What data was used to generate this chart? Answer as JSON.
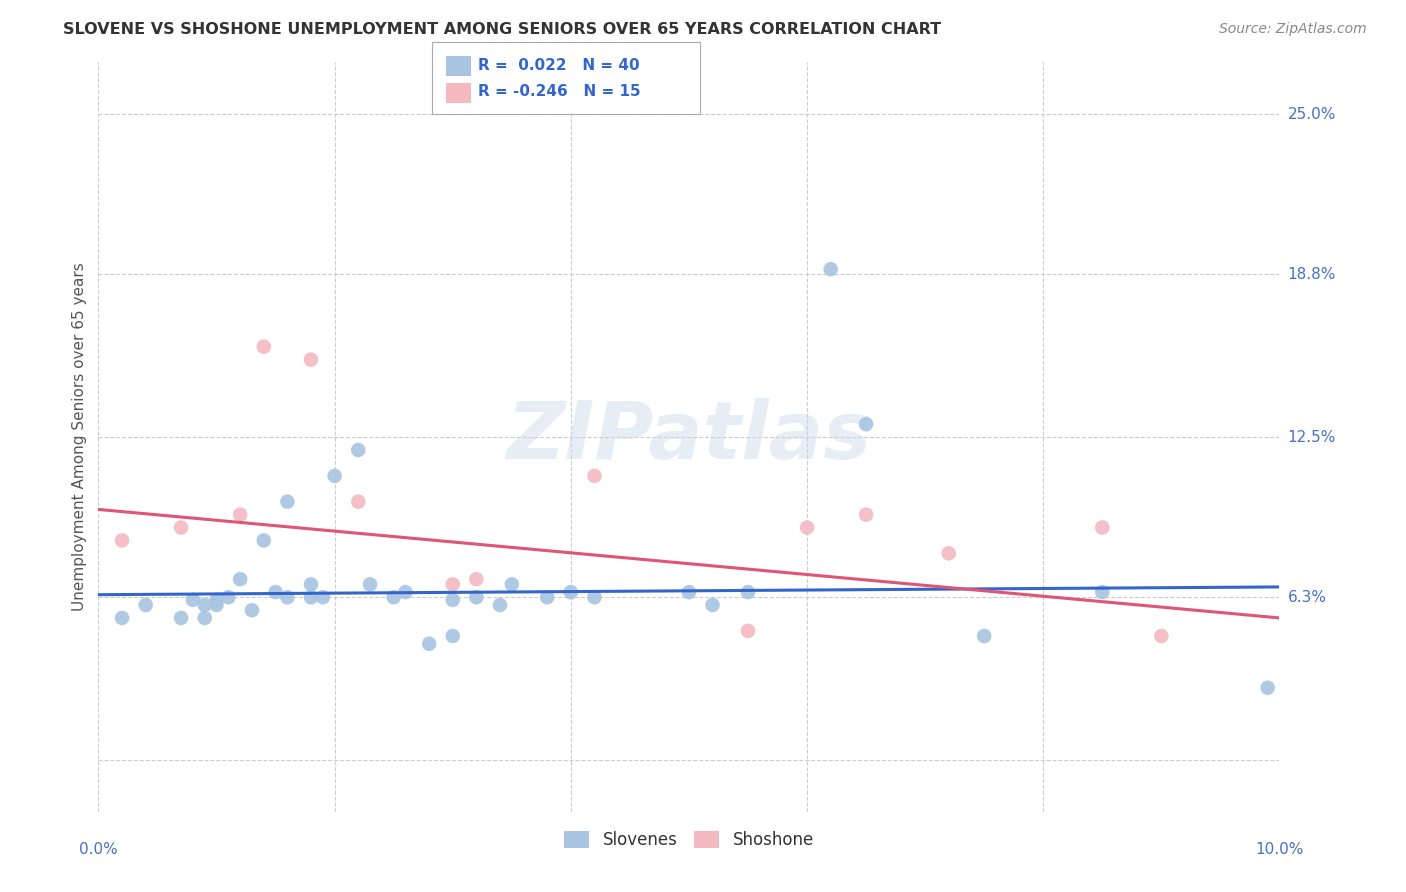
{
  "title": "SLOVENE VS SHOSHONE UNEMPLOYMENT AMONG SENIORS OVER 65 YEARS CORRELATION CHART",
  "source": "Source: ZipAtlas.com",
  "ylabel": "Unemployment Among Seniors over 65 years",
  "xlim": [
    0.0,
    0.1
  ],
  "ylim": [
    -0.02,
    0.27
  ],
  "xticks": [
    0.0,
    0.02,
    0.04,
    0.06,
    0.08,
    0.1
  ],
  "xticklabels": [
    "0.0%",
    "",
    "",
    "",
    "",
    "10.0%"
  ],
  "ytick_positions": [
    0.0,
    0.063,
    0.125,
    0.188,
    0.25
  ],
  "yticklabels": [
    "",
    "6.3%",
    "12.5%",
    "18.8%",
    "25.0%"
  ],
  "watermark": "ZIPatlas",
  "blue_R": 0.022,
  "blue_N": 40,
  "pink_R": -0.246,
  "pink_N": 15,
  "slovene_color": "#a8c4e0",
  "shoshone_color": "#f4b8c1",
  "blue_line_color": "#3366cc",
  "pink_line_color": "#e05575",
  "slovene_x": [
    0.002,
    0.004,
    0.007,
    0.008,
    0.009,
    0.009,
    0.01,
    0.01,
    0.011,
    0.012,
    0.013,
    0.014,
    0.015,
    0.016,
    0.016,
    0.018,
    0.018,
    0.019,
    0.02,
    0.022,
    0.023,
    0.025,
    0.026,
    0.028,
    0.03,
    0.03,
    0.032,
    0.034,
    0.035,
    0.038,
    0.04,
    0.042,
    0.05,
    0.052,
    0.055,
    0.062,
    0.065,
    0.075,
    0.085,
    0.099
  ],
  "slovene_y": [
    0.055,
    0.06,
    0.055,
    0.062,
    0.06,
    0.055,
    0.06,
    0.062,
    0.063,
    0.07,
    0.058,
    0.085,
    0.065,
    0.063,
    0.1,
    0.068,
    0.063,
    0.063,
    0.11,
    0.12,
    0.068,
    0.063,
    0.065,
    0.045,
    0.048,
    0.062,
    0.063,
    0.06,
    0.068,
    0.063,
    0.065,
    0.063,
    0.065,
    0.06,
    0.065,
    0.19,
    0.13,
    0.048,
    0.065,
    0.028
  ],
  "shoshone_x": [
    0.002,
    0.007,
    0.012,
    0.014,
    0.018,
    0.022,
    0.03,
    0.032,
    0.042,
    0.055,
    0.06,
    0.065,
    0.072,
    0.085,
    0.09
  ],
  "shoshone_y": [
    0.085,
    0.09,
    0.095,
    0.16,
    0.155,
    0.1,
    0.068,
    0.07,
    0.11,
    0.05,
    0.09,
    0.095,
    0.08,
    0.09,
    0.048
  ],
  "marker_size": 110,
  "background_color": "#ffffff",
  "grid_color": "#cccccc",
  "blue_line_start_y": 0.064,
  "blue_line_end_y": 0.067,
  "pink_line_start_y": 0.097,
  "pink_line_end_y": 0.055
}
